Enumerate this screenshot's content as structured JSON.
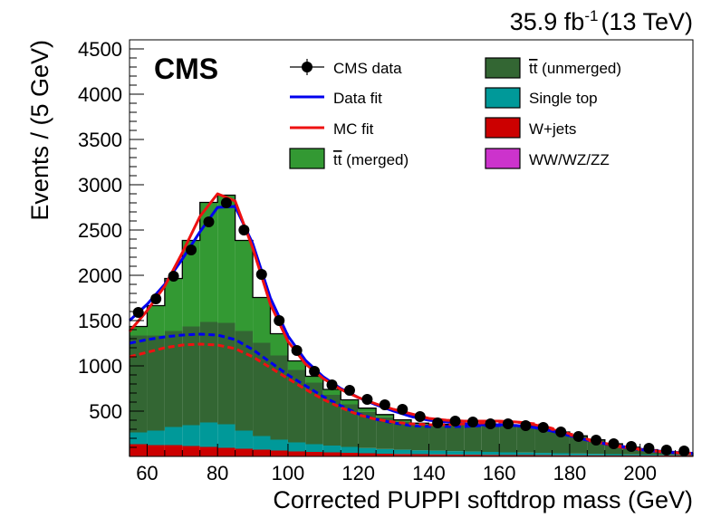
{
  "header": {
    "lumi": "35.9 fb",
    "lumi_exp": "-1",
    "energy": "(13 TeV)",
    "experiment": "CMS"
  },
  "legend": {
    "data": "CMS data",
    "data_fit": "Data fit",
    "mc_fit": "MC fit",
    "tt_merged_prefix": "tt",
    "tt_merged_suffix": " (merged)",
    "tt_unmerged_prefix": "tt",
    "tt_unmerged_suffix": " (unmerged)",
    "single_top": "Single top",
    "wjets": "W+jets",
    "diboson": "WW/WZ/ZZ"
  },
  "colors": {
    "tt_merged": "#339933",
    "tt_unmerged": "#336633",
    "single_top": "#009999",
    "wjets": "#cc0000",
    "diboson": "#cc33cc",
    "data_fit": "#0000ee",
    "mc_fit": "#ee1111"
  },
  "chart_data": {
    "type": "bar",
    "title": "",
    "xlabel": "Corrected PUPPI softdrop mass (GeV)",
    "ylabel": "Events / (5 GeV)",
    "xlim": [
      55,
      215
    ],
    "ylim": [
      0,
      4600
    ],
    "x_ticks": [
      60,
      80,
      100,
      120,
      140,
      160,
      180,
      200
    ],
    "y_ticks": [
      500,
      1000,
      1500,
      2000,
      2500,
      3000,
      3500,
      4000,
      4500
    ],
    "bin_edges": [
      55,
      60,
      65,
      70,
      75,
      80,
      85,
      90,
      95,
      100,
      105,
      110,
      115,
      120,
      125,
      130,
      135,
      140,
      145,
      150,
      155,
      160,
      165,
      170,
      175,
      180,
      185,
      190,
      195,
      200,
      205,
      210,
      215
    ],
    "stack": [
      {
        "name": "WW/WZ/ZZ",
        "values": [
          5,
          5,
          5,
          5,
          5,
          5,
          5,
          5,
          5,
          5,
          5,
          5,
          5,
          5,
          5,
          5,
          5,
          5,
          5,
          5,
          5,
          5,
          5,
          5,
          5,
          5,
          5,
          5,
          5,
          5,
          5,
          5
        ]
      },
      {
        "name": "W+jets",
        "values": [
          130,
          120,
          120,
          110,
          100,
          90,
          80,
          70,
          60,
          50,
          45,
          40,
          35,
          30,
          25,
          22,
          20,
          18,
          16,
          14,
          12,
          10,
          10,
          9,
          8,
          7,
          6,
          5,
          5,
          5,
          5,
          5
        ]
      },
      {
        "name": "Single top",
        "values": [
          130,
          160,
          200,
          230,
          270,
          260,
          200,
          150,
          120,
          100,
          85,
          75,
          65,
          58,
          52,
          47,
          42,
          40,
          37,
          35,
          33,
          30,
          28,
          25,
          22,
          20,
          17,
          15,
          12,
          10,
          8,
          6
        ]
      },
      {
        "name": "tt (unmerged)",
        "values": [
          1070,
          1050,
          1060,
          1090,
          1110,
          1120,
          1100,
          1030,
          930,
          800,
          680,
          560,
          470,
          400,
          350,
          310,
          290,
          285,
          290,
          300,
          300,
          300,
          290,
          270,
          230,
          190,
          150,
          110,
          80,
          55,
          35,
          20
        ]
      },
      {
        "name": "tt (merged)",
        "values": [
          100,
          330,
          580,
          950,
          1320,
          1410,
          1000,
          500,
          240,
          100,
          70,
          60,
          50,
          40,
          30,
          20,
          10,
          5,
          5,
          5,
          5,
          5,
          5,
          5,
          5,
          5,
          5,
          5,
          0,
          0,
          0,
          0
        ]
      }
    ],
    "data_points": {
      "x": [
        57.5,
        62.5,
        67.5,
        72.5,
        77.5,
        82.5,
        87.5,
        92.5,
        97.5,
        102.5,
        107.5,
        112.5,
        117.5,
        122.5,
        127.5,
        132.5,
        137.5,
        142.5,
        147.5,
        152.5,
        157.5,
        162.5,
        167.5,
        172.5,
        177.5,
        182.5,
        187.5,
        192.5,
        197.5,
        202.5,
        207.5,
        212.5
      ],
      "y": [
        1590,
        1740,
        1990,
        2280,
        2590,
        2800,
        2500,
        2010,
        1500,
        1170,
        940,
        790,
        730,
        630,
        570,
        520,
        440,
        370,
        390,
        380,
        360,
        360,
        340,
        320,
        270,
        220,
        180,
        140,
        110,
        90,
        70,
        60
      ]
    },
    "fits": [
      {
        "name": "Data fit",
        "style": "solid",
        "x": [
          55,
          60,
          65,
          70,
          75,
          80,
          85,
          90,
          95,
          100,
          105,
          110,
          115,
          120,
          125,
          130,
          135,
          140,
          145,
          150,
          155,
          160,
          165,
          170,
          175,
          180,
          185,
          190,
          195,
          200,
          205,
          210,
          215
        ],
        "y": [
          1500,
          1680,
          1900,
          2180,
          2480,
          2750,
          2760,
          2350,
          1750,
          1330,
          1060,
          880,
          750,
          650,
          570,
          500,
          440,
          400,
          380,
          360,
          350,
          350,
          340,
          320,
          280,
          230,
          180,
          140,
          110,
          80,
          60,
          45,
          35
        ]
      },
      {
        "name": "MC fit",
        "style": "solid",
        "x": [
          55,
          60,
          65,
          70,
          75,
          80,
          85,
          90,
          95,
          100,
          105,
          110,
          115,
          120,
          125,
          130,
          135,
          140,
          145,
          150,
          155,
          160,
          165,
          170,
          175,
          180,
          185,
          190,
          195,
          200,
          205,
          210,
          215
        ],
        "y": [
          1380,
          1610,
          1880,
          2250,
          2650,
          2900,
          2820,
          2300,
          1680,
          1270,
          1020,
          860,
          740,
          650,
          580,
          520,
          470,
          420,
          400,
          390,
          390,
          390,
          380,
          350,
          300,
          240,
          180,
          140,
          100,
          75,
          55,
          40,
          30
        ]
      },
      {
        "name": "Data fit (bkg)",
        "style": "dashed",
        "x": [
          55,
          60,
          65,
          70,
          75,
          80,
          85,
          90,
          95,
          100,
          105,
          110,
          115,
          120,
          125,
          130,
          135,
          140,
          145,
          150,
          155,
          160,
          165,
          170,
          175,
          180,
          185,
          190,
          195,
          200,
          205,
          210,
          215
        ],
        "y": [
          1250,
          1290,
          1320,
          1340,
          1350,
          1340,
          1290,
          1180,
          1040,
          900,
          780,
          660,
          560,
          470,
          410,
          370,
          340,
          330,
          330,
          330,
          340,
          340,
          340,
          320,
          280,
          230,
          180,
          140,
          105,
          75,
          55,
          40,
          30
        ]
      },
      {
        "name": "MC fit (bkg)",
        "style": "dashed",
        "x": [
          55,
          60,
          65,
          70,
          75,
          80,
          85,
          90,
          95,
          100,
          105,
          110,
          115,
          120,
          125,
          130,
          135,
          140,
          145,
          150,
          155,
          160,
          165,
          170,
          175,
          180,
          185,
          190,
          195,
          200,
          205,
          210,
          215
        ],
        "y": [
          1100,
          1150,
          1200,
          1230,
          1240,
          1230,
          1190,
          1100,
          980,
          860,
          740,
          630,
          540,
          460,
          410,
          380,
          360,
          350,
          350,
          360,
          370,
          380,
          380,
          360,
          310,
          250,
          190,
          145,
          110,
          80,
          58,
          42,
          30
        ]
      }
    ]
  }
}
